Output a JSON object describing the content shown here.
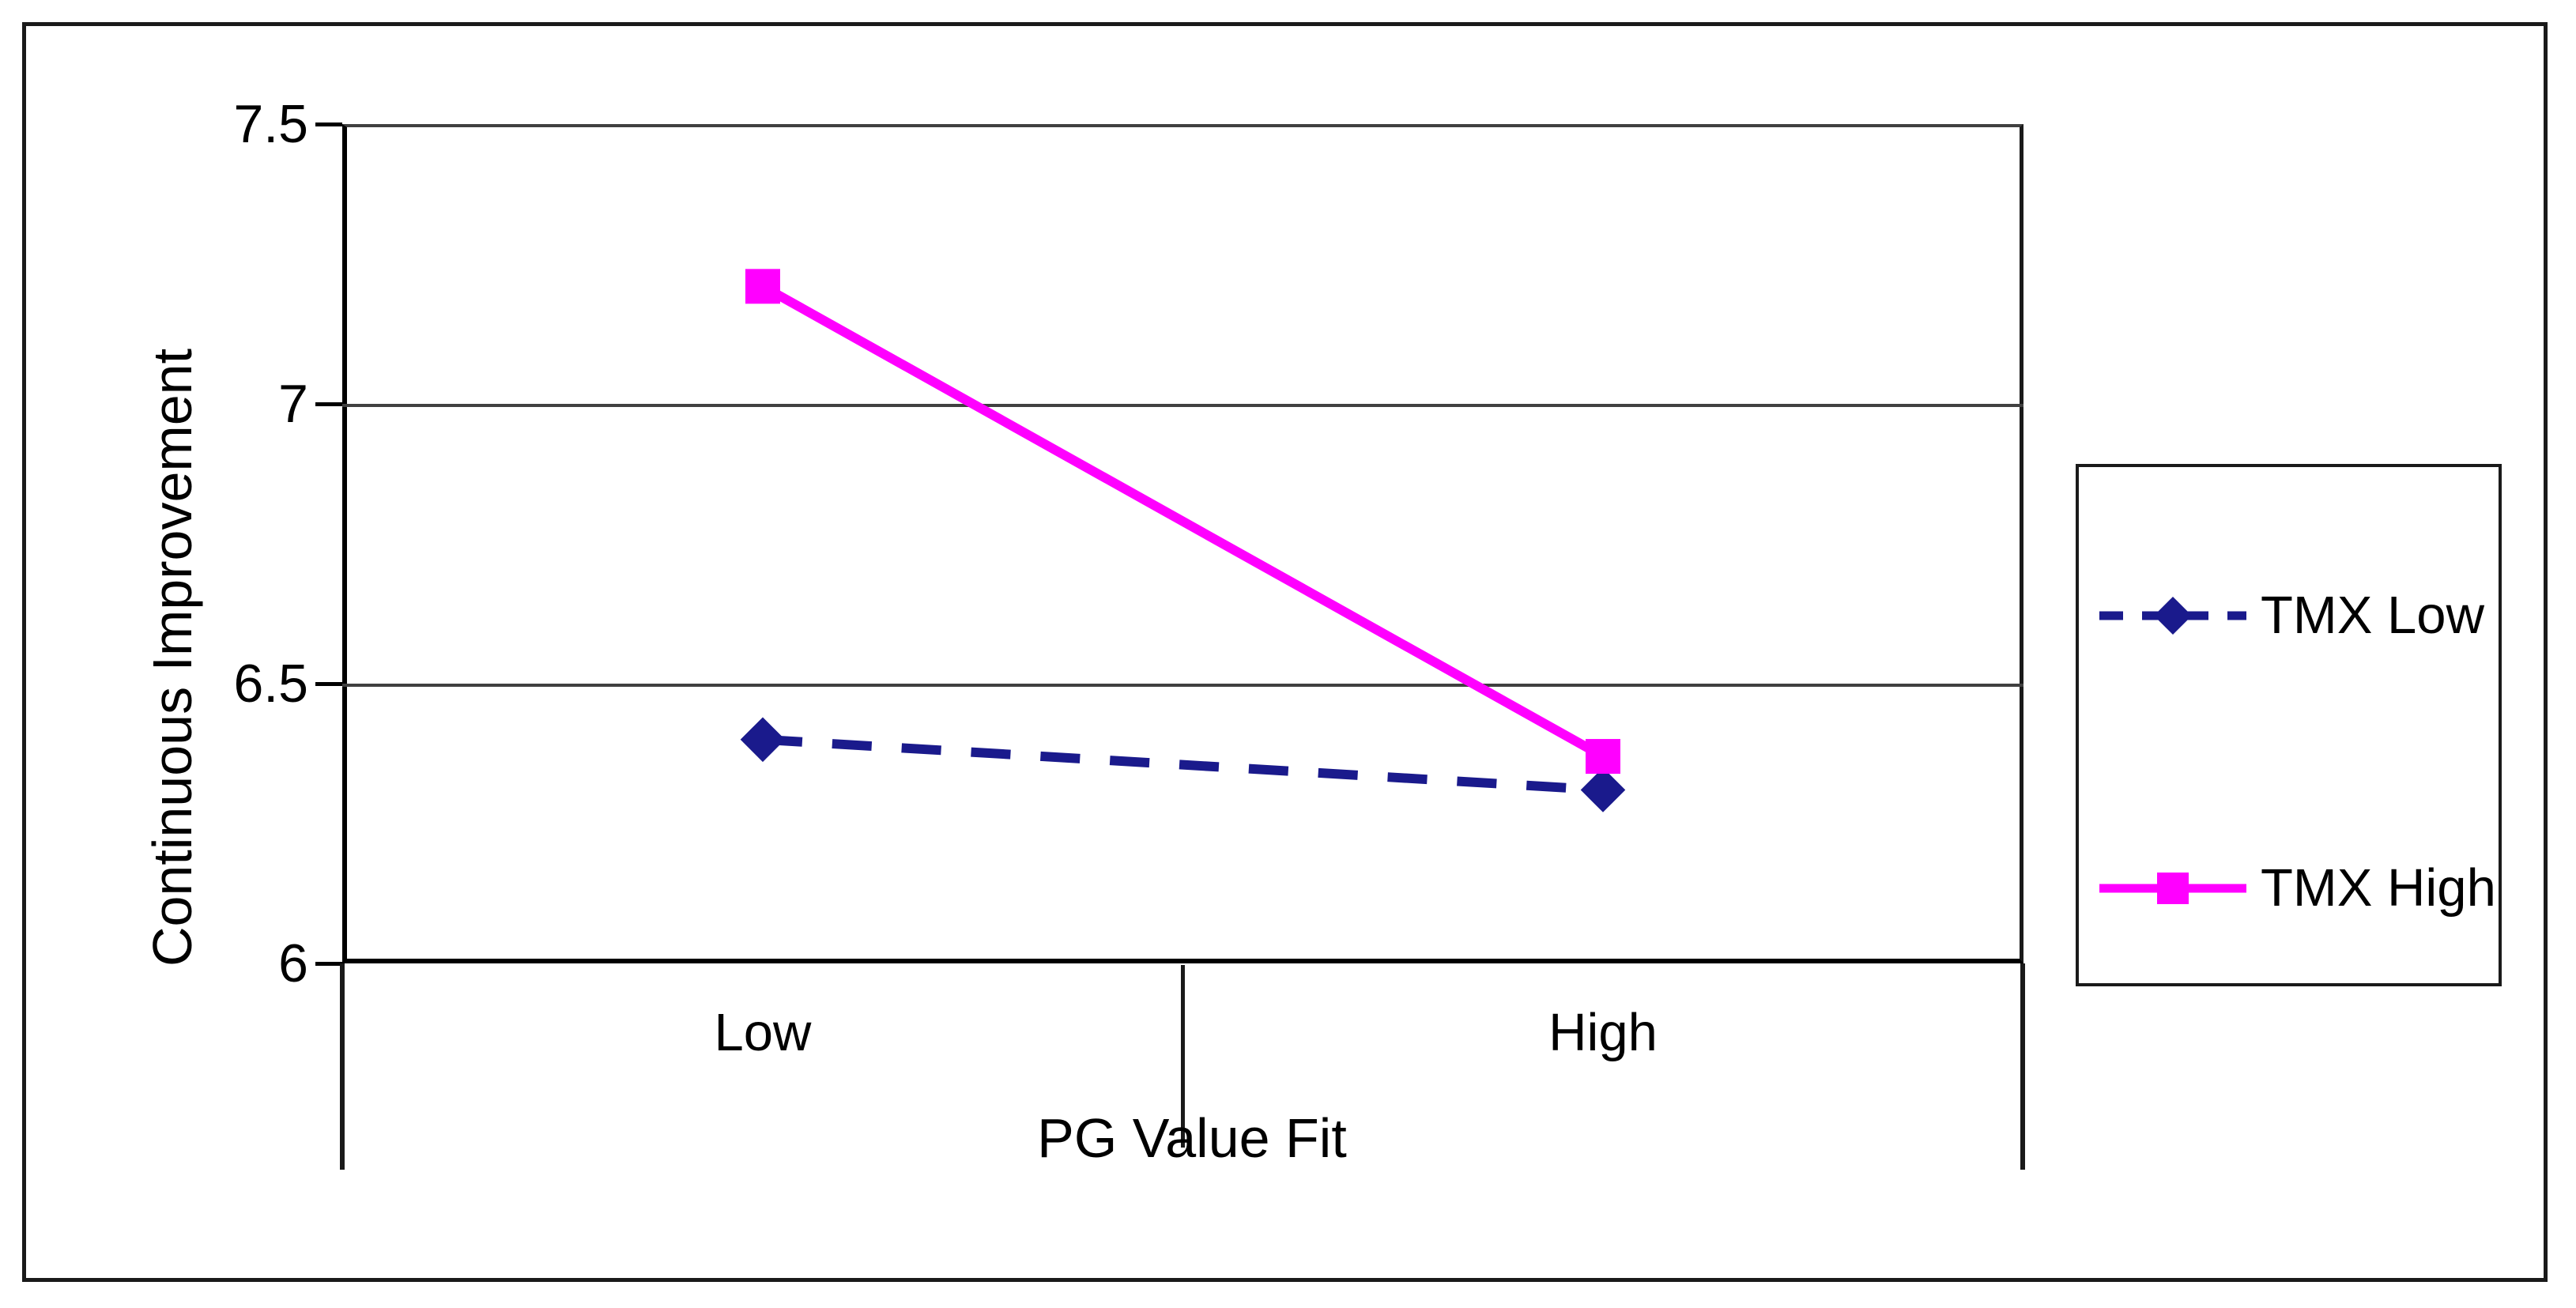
{
  "figure": {
    "background": "#ffffff",
    "border_color": "#1a1a1a"
  },
  "chart_data": {
    "type": "line",
    "title": "",
    "categories": [
      "Low",
      "High"
    ],
    "series": [
      {
        "name": "TMX Low",
        "values": [
          6.4,
          6.31
        ],
        "color": "#1A1A8C",
        "line_style": "dashed",
        "marker": "diamond"
      },
      {
        "name": "TMX High",
        "values": [
          7.21,
          6.37
        ],
        "color": "#FF00FF",
        "line_style": "solid",
        "marker": "square"
      }
    ],
    "xlabel": "PG Value Fit",
    "ylabel": "Continuous Improvement",
    "ylim": [
      6,
      7.5
    ],
    "yticks": [
      7.5,
      7,
      6.5,
      6
    ],
    "ytick_labels": [
      "7.5",
      "7",
      "6.5",
      "6"
    ],
    "grid": true,
    "gridline_color": "#404040",
    "axis_color": "#000000",
    "legend_position": "right"
  }
}
